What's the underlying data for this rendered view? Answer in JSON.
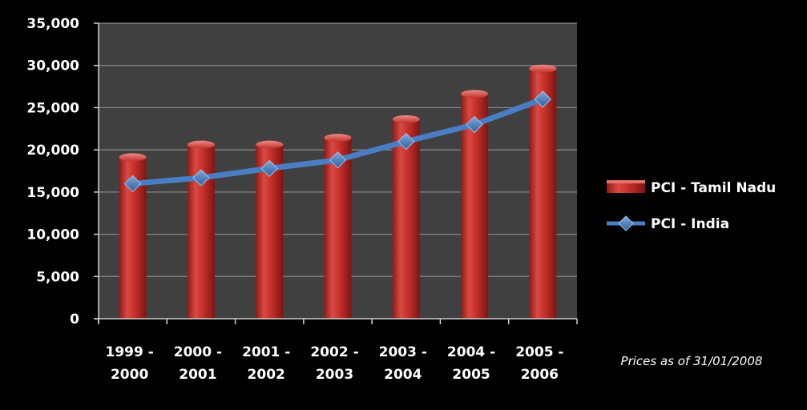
{
  "chart_data": {
    "type": "bar",
    "title": "",
    "xlabel": "",
    "ylabel": "",
    "categories": [
      [
        "1999 -",
        "2000"
      ],
      [
        "2000 -",
        "2001"
      ],
      [
        "2001 -",
        "2002"
      ],
      [
        "2002 -",
        "2003"
      ],
      [
        "2003 -",
        "2004"
      ],
      [
        "2004 -",
        "2005"
      ],
      [
        "2005 -",
        "2006"
      ]
    ],
    "ylim": [
      0,
      35000
    ],
    "yticks": [
      0,
      5000,
      10000,
      15000,
      20000,
      25000,
      30000,
      35000
    ],
    "ytick_labels": [
      "0",
      "5,000",
      "10,000",
      "15,000",
      "20,000",
      "25,000",
      "30,000",
      "35,000"
    ],
    "grid": true,
    "legend_position": "right",
    "series": [
      {
        "name": "PCI - Tamil  Nadu",
        "type": "bar",
        "color": "#c0302a",
        "values": [
          19500,
          21000,
          21000,
          21800,
          24000,
          27000,
          30000
        ]
      },
      {
        "name": "PCI - India",
        "type": "line",
        "color": "#4a7ec4",
        "marker": "diamond",
        "values": [
          16000,
          16700,
          17800,
          18800,
          21000,
          23000,
          26000
        ]
      }
    ],
    "note": "Prices as of 31/01/2008"
  }
}
